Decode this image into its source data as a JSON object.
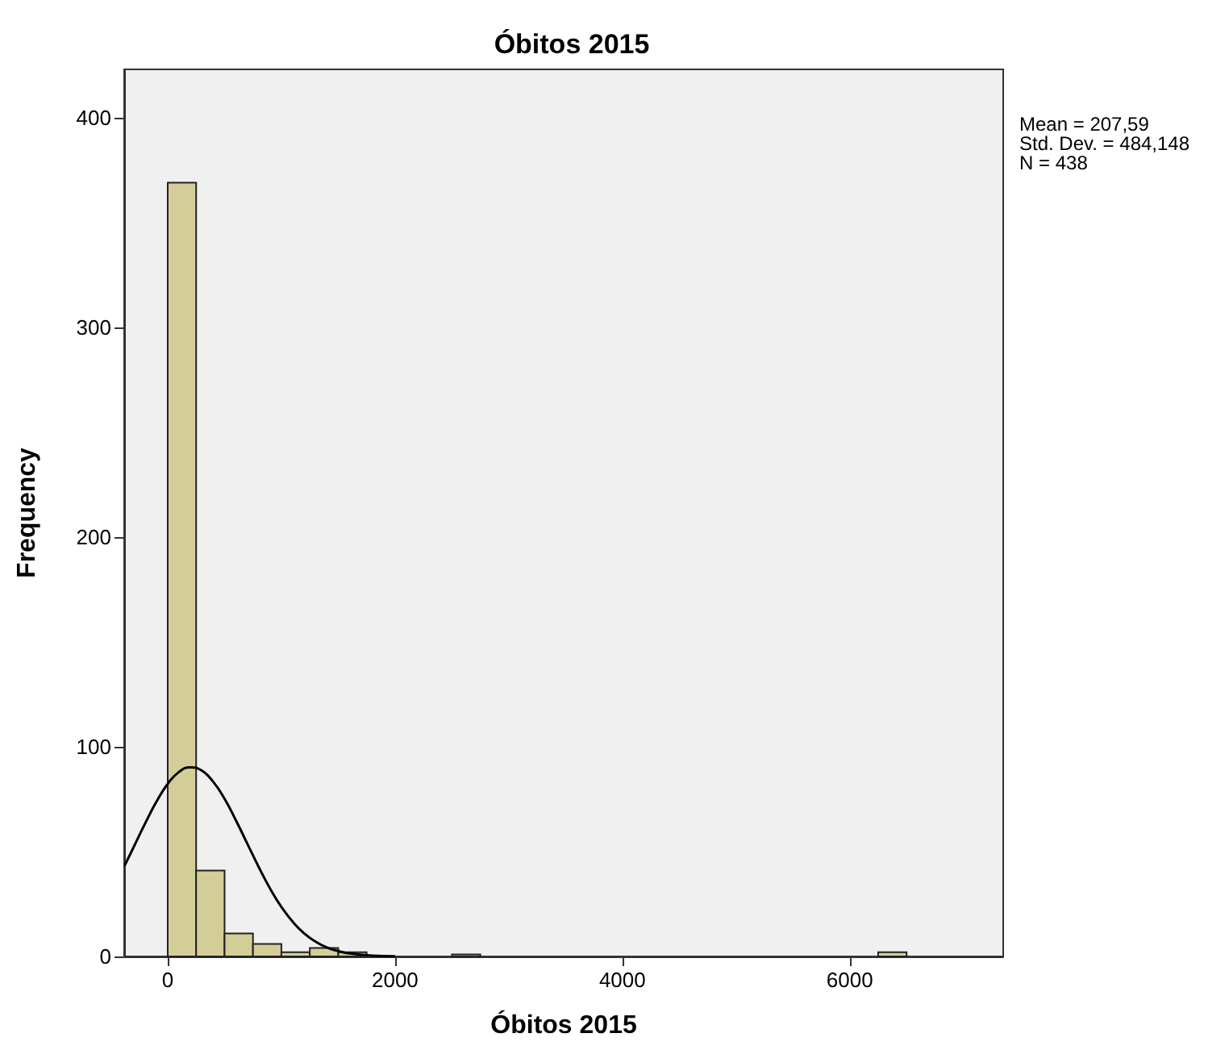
{
  "chart_data": {
    "type": "histogram",
    "title": "Óbitos 2015",
    "xlabel": "Óbitos 2015",
    "ylabel": "Frequency",
    "annotations": [
      "Mean = 207,59",
      "Std. Dev. = 484,148",
      "N = 438"
    ],
    "series": [
      {
        "color": "#d3ce98",
        "bins": [
          0,
          250,
          500,
          750,
          1000,
          1250,
          1500,
          1750,
          2000,
          2250,
          2500,
          2750,
          3000,
          3250,
          3500,
          3750,
          4000,
          4250,
          4500,
          4750,
          5000,
          5250,
          5500,
          5750,
          6000,
          6250,
          6500
        ],
        "values": [
          369,
          41,
          11,
          6,
          2,
          4,
          2,
          0,
          0,
          0,
          1,
          0,
          0,
          0,
          0,
          0,
          0,
          0,
          0,
          0,
          0,
          0,
          0,
          0,
          0,
          2
        ]
      },
      {
        "type": "line",
        "color": "#000000",
        "marker": "none",
        "x": [
          -380,
          -300,
          -200,
          -100,
          0,
          100,
          200,
          300,
          400,
          500,
          600,
          700,
          800,
          900,
          1000,
          1100,
          1200,
          1300,
          1400,
          1500,
          1600,
          1800,
          2000
        ],
        "values": [
          43.2,
          52.1,
          63.3,
          73.7,
          82.3,
          88.0,
          90.2,
          88.6,
          83.3,
          75.2,
          64.9,
          53.8,
          42.7,
          32.4,
          23.6,
          16.5,
          11.0,
          7.1,
          4.3,
          2.6,
          1.4,
          0.4,
          0.1
        ]
      }
    ],
    "xlim": [
      -383,
      7350
    ],
    "xticks": [
      0,
      2000,
      4000,
      6000
    ],
    "ylim": [
      0,
      423
    ],
    "yticks": [
      0,
      100,
      200,
      300,
      400
    ],
    "grid": false
  }
}
